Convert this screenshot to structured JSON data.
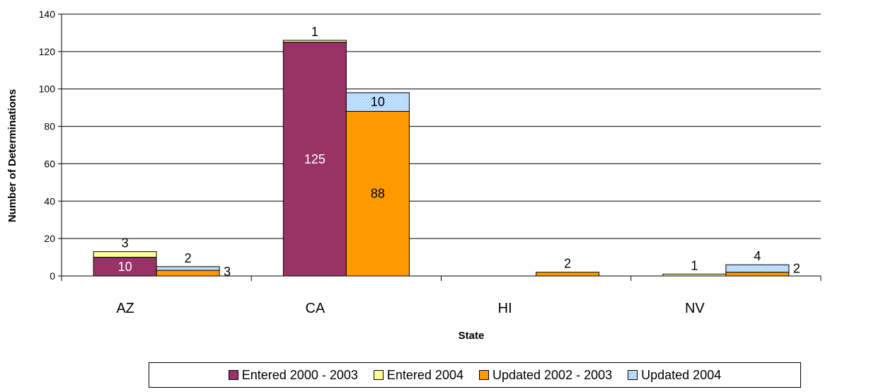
{
  "chart_data": {
    "type": "bar",
    "stacked_groups": true,
    "title": "",
    "xlabel": "State",
    "ylabel": "Number of Determinations",
    "categories": [
      "AZ",
      "CA",
      "HI",
      "NV"
    ],
    "ylim": [
      0,
      140
    ],
    "yticks": [
      "0",
      "20",
      "40",
      "60",
      "80",
      "100",
      "120",
      "140"
    ],
    "grid": true,
    "legend_position": "bottom",
    "series": [
      {
        "name": "Entered 2000 - 2003",
        "stack": "Entered",
        "color": "#993366",
        "pattern": "solid",
        "values": [
          10,
          125,
          0,
          0
        ],
        "labels": [
          "10",
          "125",
          "",
          ""
        ],
        "label_color": "#ffffff",
        "label_pos": "inside"
      },
      {
        "name": "Entered 2004",
        "stack": "Entered",
        "color": "#ffff99",
        "pattern": "solid",
        "values": [
          3,
          1,
          0,
          1
        ],
        "labels": [
          "3",
          "1",
          "",
          "1"
        ],
        "label_color": "#000000",
        "label_pos": "above"
      },
      {
        "name": "Updated 2002 - 2003",
        "stack": "Updated",
        "color": "#ff9900",
        "pattern": "solid",
        "values": [
          3,
          88,
          2,
          2
        ],
        "labels": [
          "3",
          "88",
          "2",
          "2"
        ],
        "label_color": "#000000",
        "label_pos": "mixed"
      },
      {
        "name": "Updated 2004",
        "stack": "Updated",
        "color": "#99ccff",
        "pattern": "hatch",
        "values": [
          2,
          10,
          0,
          4
        ],
        "labels": [
          "2",
          "10",
          "",
          "4"
        ],
        "label_color": "#000000",
        "label_pos": "mixed"
      }
    ]
  }
}
